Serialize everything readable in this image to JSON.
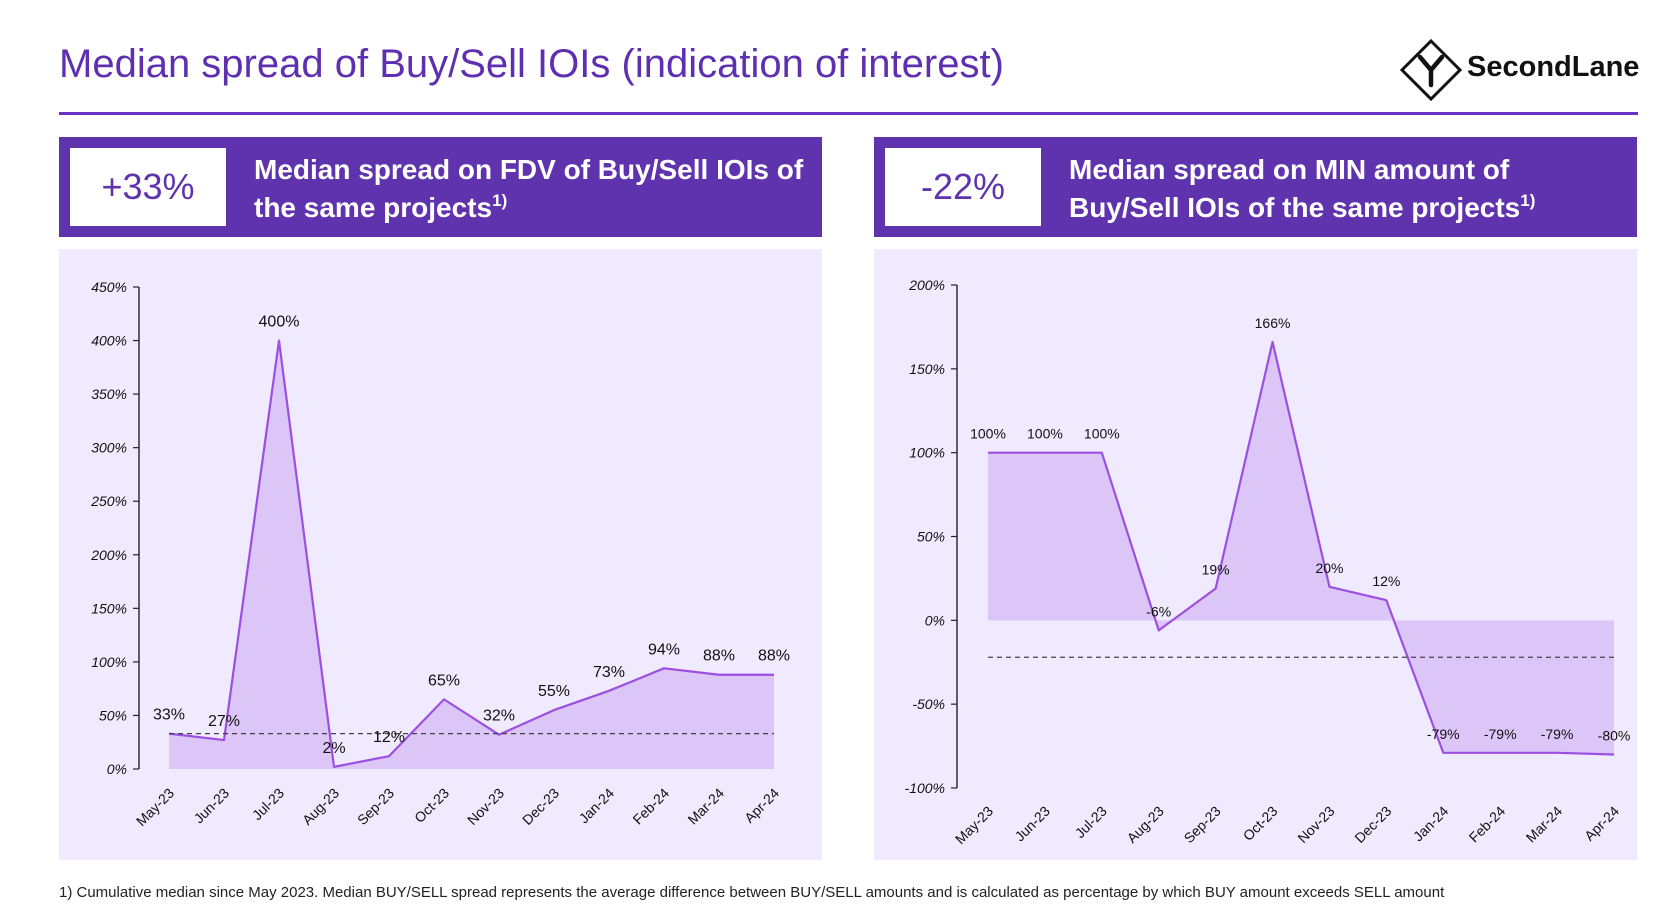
{
  "page": {
    "title": "Median spread of Buy/Sell IOIs (indication of interest)",
    "logo_text": "SecondLane",
    "footnote": "1) Cumulative median since May 2023. Median BUY/SELL spread represents the average difference between BUY/SELL amounts and is calculated as percentage by which BUY amount exceeds SELL amount"
  },
  "colors": {
    "accent": "#5f33ae",
    "panel_bg": "#efeafd",
    "area_fill": "#dcc6f8",
    "line": "#9c4fe0"
  },
  "banners": [
    {
      "kpi": "+33%",
      "text_line1": "Median spread on FDV of Buy/Sell IOIs of",
      "text_line2": "the same projects",
      "sup": "1)"
    },
    {
      "kpi": "-22%",
      "text_line1": "Median spread on MIN amount of",
      "text_line2": "Buy/Sell IOIs of the same projects",
      "sup": "1)"
    }
  ],
  "chart_data": [
    {
      "type": "area",
      "title": "Median spread on FDV of Buy/Sell IOIs of the same projects",
      "categories": [
        "May-23",
        "Jun-23",
        "Jul-23",
        "Aug-23",
        "Sep-23",
        "Oct-23",
        "Nov-23",
        "Dec-23",
        "Jan-24",
        "Feb-24",
        "Mar-24",
        "Apr-24"
      ],
      "series": [
        {
          "values": [
            33,
            27,
            400,
            2,
            12,
            65,
            32,
            55,
            73,
            94,
            88,
            88
          ]
        }
      ],
      "data_labels": [
        "33%",
        "27%",
        "400%",
        "2%",
        "12%",
        "65%",
        "32%",
        "55%",
        "73%",
        "94%",
        "88%",
        "88%"
      ],
      "reference_line": 33,
      "ylim": [
        0,
        450
      ],
      "yticks": [
        0,
        50,
        100,
        150,
        200,
        250,
        300,
        350,
        400,
        450
      ],
      "ytick_labels": [
        "0%",
        "50%",
        "100%",
        "150%",
        "200%",
        "250%",
        "300%",
        "350%",
        "400%",
        "450%"
      ],
      "grid": false
    },
    {
      "type": "area",
      "title": "Median spread on MIN amount of Buy/Sell IOIs of the same projects",
      "categories": [
        "May-23",
        "Jun-23",
        "Jul-23",
        "Aug-23",
        "Sep-23",
        "Oct-23",
        "Nov-23",
        "Dec-23",
        "Jan-24",
        "Feb-24",
        "Mar-24",
        "Apr-24"
      ],
      "series": [
        {
          "values": [
            100,
            100,
            100,
            -6,
            19,
            166,
            20,
            12,
            -79,
            -79,
            -79,
            -80
          ]
        }
      ],
      "data_labels": [
        "100%",
        "100%",
        "100%",
        "-6%",
        "19%",
        "166%",
        "20%",
        "12%",
        "-79%",
        "-79%",
        "-79%",
        "-80%"
      ],
      "reference_line": -22,
      "ylim": [
        -100,
        200
      ],
      "yticks": [
        -100,
        -50,
        0,
        50,
        100,
        150,
        200
      ],
      "ytick_labels": [
        "-100%",
        "-50%",
        "0%",
        "50%",
        "100%",
        "150%",
        "200%"
      ],
      "grid": false
    }
  ]
}
